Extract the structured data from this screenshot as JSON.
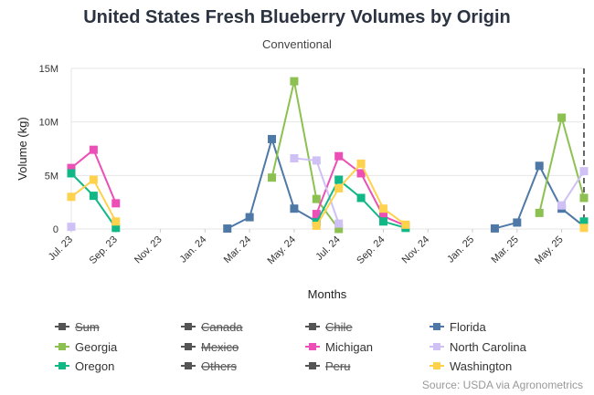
{
  "chart_data": {
    "type": "line",
    "title": "United States Fresh Blueberry Volumes by Origin",
    "subtitle": "Conventional",
    "xlabel": "Months",
    "ylabel": "Volume (kg)",
    "ylim": [
      0,
      15000000
    ],
    "y_ticks": [
      0,
      5000000,
      10000000,
      15000000
    ],
    "y_tick_labels": [
      "0",
      "5M",
      "10M",
      "15M"
    ],
    "x_tick_labels": [
      "Jul. 23",
      "Sep. 23",
      "Nov. 23",
      "Jan. 24",
      "Mar. 24",
      "May. 24",
      "Jul. 24",
      "Sep. 24",
      "Nov. 24",
      "Jan. 25",
      "Mar. 25",
      "May. 25"
    ],
    "months": [
      "Jul. 23",
      "Aug. 23",
      "Sep. 23",
      "Oct. 23",
      "Nov. 23",
      "Dec. 23",
      "Jan. 24",
      "Feb. 24",
      "Mar. 24",
      "Apr. 24",
      "May. 24",
      "Jun. 24",
      "Jul. 24",
      "Aug. 24",
      "Sep. 24",
      "Oct. 24",
      "Nov. 24",
      "Dec. 24",
      "Jan. 25",
      "Feb. 25",
      "Mar. 25",
      "Apr. 25",
      "May. 25",
      "Jun. 25"
    ],
    "grid": true,
    "legend_position": "bottom",
    "series": [
      {
        "name": "Florida",
        "color": "#4e79a7",
        "visible": true,
        "values": [
          null,
          null,
          null,
          null,
          null,
          null,
          null,
          40000,
          1100000,
          8400000,
          1900000,
          700000,
          null,
          null,
          null,
          null,
          null,
          null,
          null,
          50000,
          600000,
          5900000,
          1900000,
          250000
        ]
      },
      {
        "name": "Georgia",
        "color": "#8cc152",
        "visible": true,
        "values": [
          null,
          null,
          null,
          null,
          null,
          null,
          null,
          null,
          null,
          4800000,
          13800000,
          2800000,
          0,
          null,
          null,
          null,
          null,
          null,
          null,
          null,
          null,
          1500000,
          10400000,
          2900000
        ]
      },
      {
        "name": "Michigan",
        "color": "#ec4fb5",
        "visible": true,
        "values": [
          5700000,
          7400000,
          2400000,
          null,
          null,
          null,
          null,
          null,
          null,
          null,
          null,
          1400000,
          6800000,
          5200000,
          1200000,
          300000,
          null,
          null,
          null,
          null,
          null,
          null,
          null,
          null
        ]
      },
      {
        "name": "North Carolina",
        "color": "#cfc0f6",
        "visible": true,
        "values": [
          200000,
          null,
          null,
          null,
          null,
          null,
          null,
          null,
          null,
          null,
          6600000,
          6400000,
          500000,
          null,
          null,
          null,
          null,
          null,
          null,
          null,
          null,
          null,
          2200000,
          5400000
        ]
      },
      {
        "name": "Oregon",
        "color": "#11b886",
        "visible": true,
        "values": [
          5200000,
          3100000,
          100000,
          null,
          null,
          null,
          null,
          null,
          null,
          null,
          null,
          600000,
          4600000,
          2900000,
          700000,
          100000,
          null,
          null,
          null,
          null,
          null,
          null,
          null,
          700000
        ]
      },
      {
        "name": "Washington",
        "color": "#ffd24d",
        "visible": true,
        "values": [
          3000000,
          4600000,
          700000,
          null,
          null,
          null,
          null,
          null,
          null,
          null,
          null,
          300000,
          3800000,
          6100000,
          1900000,
          400000,
          null,
          null,
          null,
          null,
          null,
          null,
          null,
          100000
        ]
      }
    ],
    "legend": [
      {
        "name": "Sum",
        "visible": false,
        "color": "#555555"
      },
      {
        "name": "Canada",
        "visible": false,
        "color": "#555555"
      },
      {
        "name": "Chile",
        "visible": false,
        "color": "#555555"
      },
      {
        "name": "Florida",
        "visible": true,
        "color": "#4e79a7"
      },
      {
        "name": "Georgia",
        "visible": true,
        "color": "#8cc152"
      },
      {
        "name": "Mexico",
        "visible": false,
        "color": "#555555"
      },
      {
        "name": "Michigan",
        "visible": true,
        "color": "#ec4fb5"
      },
      {
        "name": "North Carolina",
        "visible": true,
        "color": "#cfc0f6"
      },
      {
        "name": "Oregon",
        "visible": true,
        "color": "#11b886"
      },
      {
        "name": "Others",
        "visible": false,
        "color": "#555555"
      },
      {
        "name": "Peru",
        "visible": false,
        "color": "#555555"
      },
      {
        "name": "Washington",
        "visible": true,
        "color": "#ffd24d"
      }
    ],
    "marker_line_month": "Jun. 25",
    "source": "Source: USDA via Agronometrics"
  }
}
